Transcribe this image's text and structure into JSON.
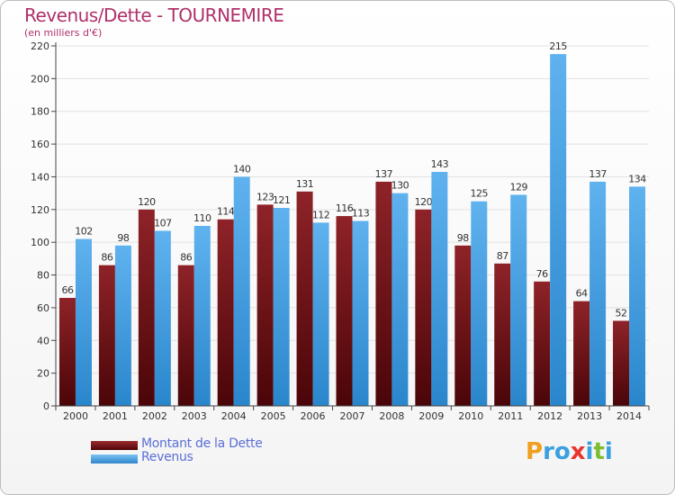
{
  "chart_data": {
    "type": "bar",
    "title": "Revenus/Dette - TOURNEMIRE",
    "subtitle": "(en milliers d'€)",
    "xlabel": "",
    "ylabel": "",
    "ylim": [
      0,
      220
    ],
    "ytick_step": 20,
    "grid": true,
    "legend_position": "bottom-left",
    "categories": [
      "2000",
      "2001",
      "2002",
      "2003",
      "2004",
      "2005",
      "2006",
      "2007",
      "2008",
      "2009",
      "2010",
      "2011",
      "2012",
      "2013",
      "2014"
    ],
    "series": [
      {
        "name": "Montant de la Dette",
        "color": "#7a1418",
        "values": [
          66,
          86,
          120,
          86,
          114,
          123,
          131,
          116,
          137,
          120,
          98,
          87,
          76,
          64,
          52
        ]
      },
      {
        "name": "Revenus",
        "color": "#4aa3e6",
        "values": [
          102,
          98,
          107,
          110,
          140,
          121,
          112,
          113,
          130,
          143,
          125,
          129,
          215,
          137,
          134
        ]
      }
    ]
  },
  "logo": {
    "text": "Proxiti",
    "letters": [
      "P",
      "r",
      "o",
      "x",
      "i",
      "t",
      "i"
    ],
    "colors": [
      "#f0a020",
      "#3aa0e0",
      "#3aa0e0",
      "#e8352e",
      "#3aa0e0",
      "#7cbe31",
      "#3aa0e0"
    ]
  }
}
